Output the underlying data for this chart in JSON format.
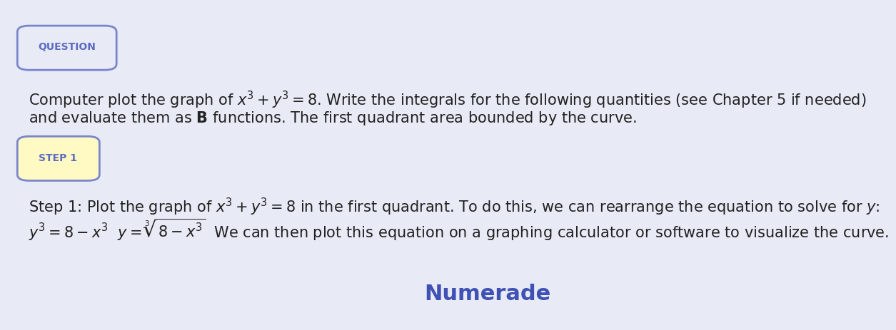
{
  "background_color": "#e8eaf6",
  "question_label": "QUESTION",
  "question_label_color": "#5c6bc0",
  "question_label_bg": "#e8eaf6",
  "question_label_border": "#7986cb",
  "question_text_line1": "Computer plot the graph of $x^3 + y^3 = 8$. Write the integrals for the following quantities (see Chapter 5 if needed)",
  "question_text_line2": "and evaluate them as $\\mathbf{B}$ functions. The first quadrant area bounded by the curve.",
  "step_label": "STEP 1",
  "step_label_color": "#5c6bc0",
  "step_label_bg": "#fff9c4",
  "step_label_border": "#7986cb",
  "step_text_line1": "Step 1: Plot the graph of $x^3 + y^3 = 8$ in the first quadrant. To do this, we can rearrange the equation to solve for $y$:",
  "step_text_line2": "$y^3 = 8 - x^3$  $y = \\sqrt[3]{8 - x^3}$  We can then plot this equation on a graphing calculator or software to visualize the curve.",
  "numerade_text": "Numerade",
  "numerade_color": "#3f51b5",
  "text_color": "#212121",
  "font_size_body": 15,
  "font_size_label": 10,
  "font_size_numerade": 22
}
